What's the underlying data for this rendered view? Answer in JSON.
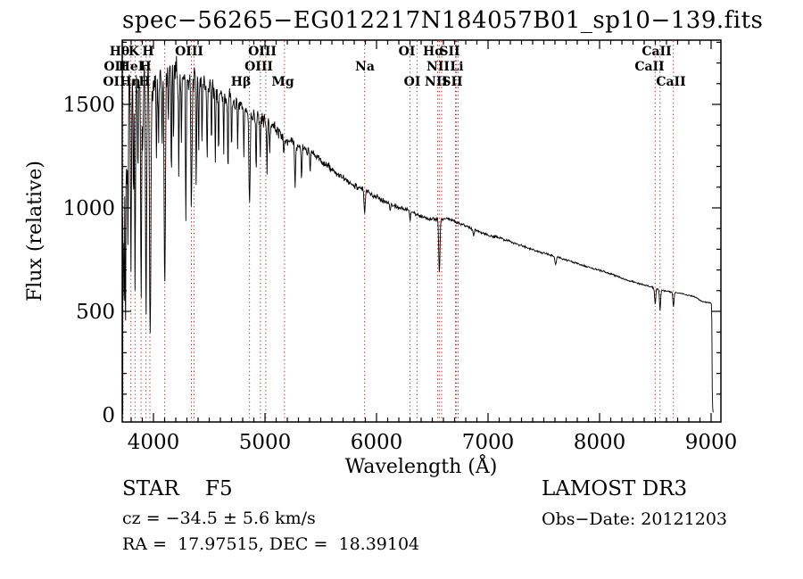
{
  "title": "spec−56265−EG012217N184057B01_sp10−139.fits",
  "annotations": {
    "star_class": "STAR    F5",
    "cz": "cz = −34.5 ± 5.6 km/s",
    "ra_dec": "RA =  17.97515, DEC =  18.39104",
    "survey": "LAMOST DR3",
    "obs_date": "Obs−Date: 20121203"
  },
  "chart_data": {
    "type": "line",
    "title": "spec−56265−EG012217N184057B01_sp10−139.fits",
    "xlabel": "Wavelength (Å)",
    "ylabel": "Flux (relative)",
    "xlim": [
      3720,
      9088
    ],
    "ylim": [
      -35,
      1810
    ],
    "xticks": [
      4000,
      5000,
      6000,
      7000,
      8000,
      9000
    ],
    "yticks": [
      0,
      500,
      1000,
      1500
    ],
    "x_minor_step": 100,
    "y_minor_step": 100,
    "grid": false,
    "line_color": "#000000",
    "marker_color": "#a63232",
    "line_markers": [
      3727,
      3798,
      3835,
      3889,
      3933,
      3968,
      4101,
      4340,
      4363,
      4861,
      4959,
      5007,
      5175,
      5893,
      6300,
      6363,
      6548,
      6563,
      6584,
      6708,
      6717,
      6731,
      8498,
      8542,
      8662
    ],
    "line_labels": [
      {
        "text": "Hθ",
        "wavelength": 3696,
        "row": 1
      },
      {
        "text": "K",
        "wavelength": 3824,
        "row": 1
      },
      {
        "text": "H",
        "wavelength": 3952,
        "row": 1
      },
      {
        "text": "OIII",
        "wavelength": 4320,
        "row": 1
      },
      {
        "text": "OIII",
        "wavelength": 4976,
        "row": 1
      },
      {
        "text": "OI",
        "wavelength": 6272,
        "row": 1
      },
      {
        "text": "Hα",
        "wavelength": 6512,
        "row": 1
      },
      {
        "text": "SII",
        "wavelength": 6656,
        "row": 1
      },
      {
        "text": "CaII",
        "wavelength": 8512,
        "row": 1
      },
      {
        "text": "OII",
        "wavelength": 3656,
        "row": 2
      },
      {
        "text": "HeI",
        "wavelength": 3800,
        "row": 2
      },
      {
        "text": "H",
        "wavelength": 3928,
        "row": 2
      },
      {
        "text": "OIII",
        "wavelength": 4944,
        "row": 2
      },
      {
        "text": "Na",
        "wavelength": 5896,
        "row": 2
      },
      {
        "text": "NII",
        "wavelength": 6552,
        "row": 2
      },
      {
        "text": "Li",
        "wavelength": 6720,
        "row": 2
      },
      {
        "text": "CaII",
        "wavelength": 8448,
        "row": 2
      },
      {
        "text": "OII",
        "wavelength": 3648,
        "row": 3
      },
      {
        "text": "Hη",
        "wavelength": 3792,
        "row": 3
      },
      {
        "text": "H",
        "wavelength": 3920,
        "row": 3
      },
      {
        "text": "Hβ",
        "wavelength": 4784,
        "row": 3
      },
      {
        "text": "Mg",
        "wavelength": 5160,
        "row": 3
      },
      {
        "text": "OI",
        "wavelength": 6320,
        "row": 3
      },
      {
        "text": "NII",
        "wavelength": 6536,
        "row": 3
      },
      {
        "text": "SII",
        "wavelength": 6680,
        "row": 3
      },
      {
        "text": "CaII",
        "wavelength": 8640,
        "row": 3
      }
    ],
    "continuum": [
      [
        3718,
        40
      ],
      [
        3721,
        950
      ],
      [
        3726,
        1320
      ],
      [
        3740,
        1480
      ],
      [
        3780,
        1570
      ],
      [
        3850,
        1600
      ],
      [
        3920,
        1620
      ],
      [
        4000,
        1610
      ],
      [
        4080,
        1630
      ],
      [
        4160,
        1650
      ],
      [
        4240,
        1640
      ],
      [
        4320,
        1620
      ],
      [
        4400,
        1615
      ],
      [
        4480,
        1590
      ],
      [
        4560,
        1560
      ],
      [
        4640,
        1540
      ],
      [
        4720,
        1510
      ],
      [
        4800,
        1480
      ],
      [
        4880,
        1450
      ],
      [
        4960,
        1430
      ],
      [
        5040,
        1410
      ],
      [
        5120,
        1370
      ],
      [
        5200,
        1330
      ],
      [
        5280,
        1300
      ],
      [
        5360,
        1285
      ],
      [
        5440,
        1255
      ],
      [
        5520,
        1220
      ],
      [
        5600,
        1185
      ],
      [
        5680,
        1150
      ],
      [
        5760,
        1120
      ],
      [
        5840,
        1100
      ],
      [
        5920,
        1075
      ],
      [
        6000,
        1055
      ],
      [
        6080,
        1030
      ],
      [
        6160,
        1010
      ],
      [
        6240,
        995
      ],
      [
        6320,
        980
      ],
      [
        6400,
        958
      ],
      [
        6480,
        948
      ],
      [
        6560,
        945
      ],
      [
        6640,
        948
      ],
      [
        6720,
        930
      ],
      [
        6800,
        912
      ],
      [
        6880,
        895
      ],
      [
        6960,
        878
      ],
      [
        7040,
        862
      ],
      [
        7120,
        852
      ],
      [
        7200,
        838
      ],
      [
        7280,
        822
      ],
      [
        7360,
        806
      ],
      [
        7440,
        792
      ],
      [
        7520,
        778
      ],
      [
        7600,
        766
      ],
      [
        7680,
        752
      ],
      [
        7760,
        738
      ],
      [
        7840,
        724
      ],
      [
        7920,
        710
      ],
      [
        8000,
        698
      ],
      [
        8080,
        685
      ],
      [
        8160,
        670
      ],
      [
        8240,
        652
      ],
      [
        8320,
        640
      ],
      [
        8400,
        628
      ],
      [
        8480,
        615
      ],
      [
        8560,
        602
      ],
      [
        8640,
        594
      ],
      [
        8720,
        588
      ],
      [
        8800,
        578
      ],
      [
        8860,
        568
      ],
      [
        8920,
        548
      ],
      [
        8995,
        540
      ],
      [
        9004,
        532
      ],
      [
        9007,
        420
      ],
      [
        9010,
        120
      ],
      [
        9012,
        60
      ],
      [
        9016,
        12
      ],
      [
        9021,
        10
      ]
    ],
    "absorption_lines": [
      [
        3727,
        600,
        3
      ],
      [
        3736,
        1000,
        3
      ],
      [
        3745,
        500,
        3
      ],
      [
        3750,
        900,
        3
      ],
      [
        3760,
        400,
        3
      ],
      [
        3771,
        800,
        3.2
      ],
      [
        3798,
        820,
        4
      ],
      [
        3820,
        500,
        3.2
      ],
      [
        3835,
        950,
        4
      ],
      [
        3860,
        550,
        3.2
      ],
      [
        3889,
        1080,
        4.5
      ],
      [
        3905,
        350,
        3
      ],
      [
        3933,
        1170,
        5
      ],
      [
        3970,
        1290,
        6
      ],
      [
        4026,
        400,
        3.5
      ],
      [
        4045,
        350,
        3
      ],
      [
        4077,
        400,
        3.2
      ],
      [
        4101,
        1060,
        5.5
      ],
      [
        4132,
        300,
        3
      ],
      [
        4160,
        550,
        3
      ],
      [
        4180,
        300,
        3
      ],
      [
        4227,
        500,
        3.2
      ],
      [
        4250,
        300,
        3
      ],
      [
        4290,
        700,
        3.5
      ],
      [
        4340,
        630,
        5
      ],
      [
        4383,
        500,
        3.5
      ],
      [
        4405,
        350,
        3
      ],
      [
        4435,
        300,
        3
      ],
      [
        4481,
        400,
        3.2
      ],
      [
        4520,
        300,
        3
      ],
      [
        4554,
        350,
        3
      ],
      [
        4584,
        300,
        3
      ],
      [
        4630,
        250,
        3
      ],
      [
        4668,
        350,
        3.2
      ],
      [
        4700,
        250,
        3
      ],
      [
        4755,
        250,
        3
      ],
      [
        4810,
        250,
        3
      ],
      [
        4861,
        440,
        5.5
      ],
      [
        4920,
        260,
        3.2
      ],
      [
        4957,
        200,
        3
      ],
      [
        5018,
        250,
        3.2
      ],
      [
        5041,
        160,
        3
      ],
      [
        5168,
        90,
        5
      ],
      [
        5270,
        200,
        4.5
      ],
      [
        5328,
        150,
        3.5
      ],
      [
        5405,
        100,
        3.5
      ],
      [
        5893,
        115,
        5
      ],
      [
        6122,
        40,
        3.5
      ],
      [
        6300,
        40,
        4
      ],
      [
        6563,
        258,
        5.5
      ],
      [
        6870,
        32,
        5
      ],
      [
        7605,
        36,
        7
      ],
      [
        8498,
        78,
        5
      ],
      [
        8542,
        98,
        5
      ],
      [
        8662,
        68,
        5
      ]
    ],
    "noise_profile": [
      [
        3718,
        125
      ],
      [
        3800,
        115
      ],
      [
        3900,
        112
      ],
      [
        4000,
        110
      ],
      [
        4100,
        112
      ],
      [
        4200,
        102
      ],
      [
        4300,
        95
      ],
      [
        4400,
        85
      ],
      [
        4500,
        72
      ],
      [
        4600,
        62
      ],
      [
        4700,
        55
      ],
      [
        4800,
        50
      ],
      [
        4900,
        46
      ],
      [
        5000,
        40
      ],
      [
        5100,
        36
      ],
      [
        5200,
        33
      ],
      [
        5300,
        30
      ],
      [
        5400,
        27
      ],
      [
        5500,
        25
      ],
      [
        5700,
        21
      ],
      [
        5900,
        18
      ],
      [
        6100,
        15
      ],
      [
        6300,
        13
      ],
      [
        6500,
        12
      ],
      [
        6700,
        11
      ],
      [
        6900,
        9
      ],
      [
        7100,
        8
      ],
      [
        7400,
        7
      ],
      [
        7700,
        6
      ],
      [
        8000,
        5
      ],
      [
        8300,
        5
      ],
      [
        8600,
        5
      ],
      [
        8900,
        4
      ],
      [
        9021,
        4
      ]
    ],
    "noise_seed": 7,
    "sample_step": 4
  }
}
